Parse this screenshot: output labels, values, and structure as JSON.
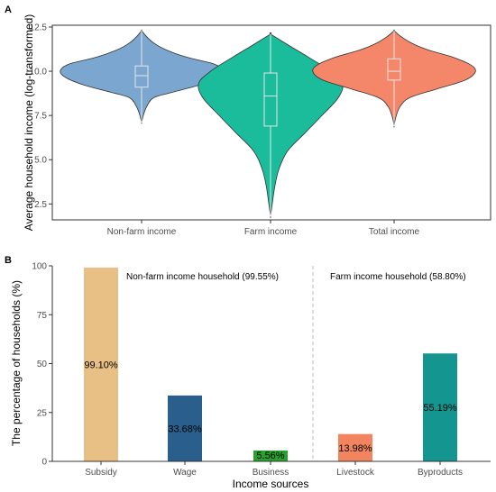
{
  "chart_data": [
    {
      "panel": "A",
      "type": "violin",
      "ylabel": "Average household income (log-transformed)",
      "ylim": [
        1.6,
        12.6
      ],
      "yticks": [
        2.5,
        5.0,
        7.5,
        10.0,
        12.5
      ],
      "ytick_labels": [
        "2.5",
        "5.0",
        "7.5",
        "10.0",
        "12.5"
      ],
      "categories": [
        "Non-farm income",
        "Farm income",
        "Total income"
      ],
      "colors": [
        "#7aa6cf",
        "#1abc9c",
        "#f4866a"
      ],
      "series": [
        {
          "category": "Non-farm income",
          "min": 7.1,
          "max": 12.3,
          "box": {
            "q1": 9.1,
            "median": 9.75,
            "q3": 10.3
          },
          "density": [
            [
              7.1,
              0.0
            ],
            [
              7.5,
              0.02
            ],
            [
              8.0,
              0.06
            ],
            [
              8.5,
              0.14
            ],
            [
              8.8,
              0.35
            ],
            [
              9.2,
              0.66
            ],
            [
              9.6,
              0.87
            ],
            [
              10.0,
              0.95
            ],
            [
              10.4,
              0.85
            ],
            [
              10.8,
              0.52
            ],
            [
              11.2,
              0.29
            ],
            [
              11.6,
              0.14
            ],
            [
              12.0,
              0.05
            ],
            [
              12.3,
              0.0
            ]
          ]
        },
        {
          "category": "Farm income",
          "min": 1.8,
          "max": 12.1,
          "box": {
            "q1": 6.9,
            "median": 8.6,
            "q3": 9.9
          },
          "density": [
            [
              1.8,
              0.0
            ],
            [
              2.5,
              0.02
            ],
            [
              3.5,
              0.05
            ],
            [
              4.5,
              0.1
            ],
            [
              5.5,
              0.2
            ],
            [
              6.5,
              0.4
            ],
            [
              7.5,
              0.6
            ],
            [
              8.5,
              0.79
            ],
            [
              9.3,
              0.84
            ],
            [
              10.0,
              0.7
            ],
            [
              10.8,
              0.44
            ],
            [
              11.5,
              0.2
            ],
            [
              12.1,
              0.0
            ]
          ]
        },
        {
          "category": "Total income",
          "min": 6.9,
          "max": 12.3,
          "box": {
            "q1": 9.5,
            "median": 10.0,
            "q3": 10.7
          },
          "density": [
            [
              6.9,
              0.0
            ],
            [
              7.4,
              0.02
            ],
            [
              8.0,
              0.07
            ],
            [
              8.5,
              0.18
            ],
            [
              9.0,
              0.5
            ],
            [
              9.5,
              0.83
            ],
            [
              10.0,
              0.95
            ],
            [
              10.4,
              0.88
            ],
            [
              10.8,
              0.68
            ],
            [
              11.2,
              0.4
            ],
            [
              11.6,
              0.2
            ],
            [
              12.0,
              0.07
            ],
            [
              12.3,
              0.0
            ]
          ]
        }
      ]
    },
    {
      "panel": "B",
      "type": "bar",
      "ylabel": "The percentage of households (%)",
      "xlabel": "Income sources",
      "ylim": [
        0,
        100
      ],
      "yticks": [
        0,
        25,
        50,
        75,
        100
      ],
      "ytick_labels": [
        "0",
        "25",
        "50",
        "75",
        "100"
      ],
      "categories": [
        "Subsidy",
        "Wage",
        "Business",
        "Livestock",
        "Byproducts"
      ],
      "values": [
        99.1,
        33.68,
        5.56,
        13.98,
        55.19
      ],
      "value_labels": [
        "99.10%",
        "33.68%",
        "5.56%",
        "13.98%",
        "55.19%"
      ],
      "colors": [
        "#e8bf85",
        "#2a5e8c",
        "#27a32c",
        "#f2855f",
        "#149590"
      ],
      "annotations": [
        "Non-farm income household (99.55%)",
        "Farm income household (58.80%)"
      ],
      "divider_after_category": 3
    }
  ]
}
